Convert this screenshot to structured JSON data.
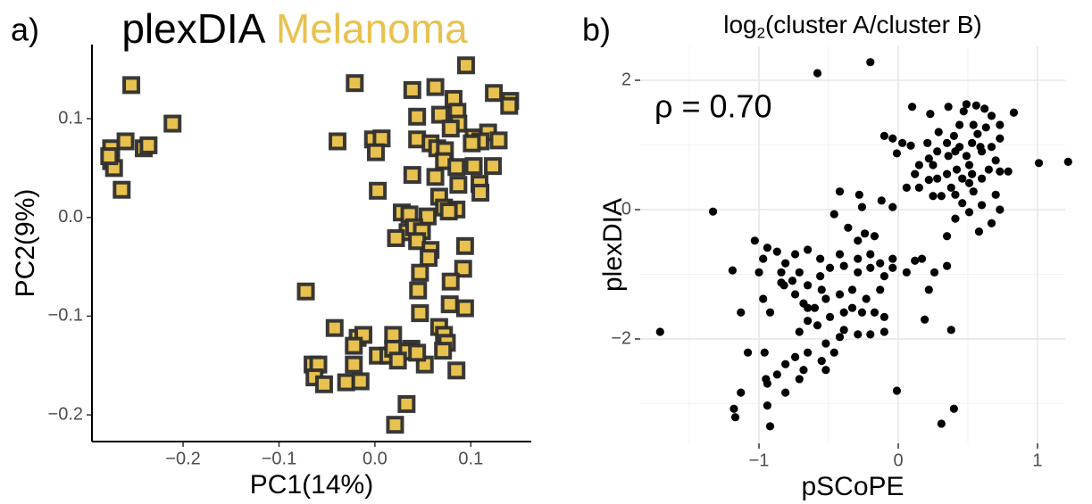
{
  "chart_data": [
    {
      "type": "scatter",
      "panel_label": "a)",
      "marker": "square",
      "color": "#e8c14f",
      "edgecolor": "#2e2e2e",
      "title_parts": [
        {
          "text": "plexDIA",
          "color": "#000000"
        },
        {
          "text": "Melanoma",
          "color": "#e8c14f"
        }
      ],
      "xlabel": "PC1(14%)",
      "ylabel": "PC2(9%)",
      "grid": false,
      "xlim": [
        -0.295,
        0.163
      ],
      "ylim": [
        -0.227,
        0.175
      ],
      "xticks": [
        {
          "value": -0.2,
          "label": "−0.2"
        },
        {
          "value": -0.1,
          "label": "−0.1"
        },
        {
          "value": 0,
          "label": "0.0"
        },
        0.1
      ],
      "yticks": [
        {
          "value": -0.2,
          "label": "−0.2"
        },
        {
          "value": -0.1,
          "label": "−0.1"
        },
        {
          "value": 0,
          "label": "0.0"
        },
        0.1
      ],
      "x": [
        -0.275,
        -0.275,
        -0.272,
        -0.26,
        -0.254,
        -0.264,
        -0.241,
        -0.236,
        -0.211,
        -0.277,
        0.095,
        -0.021,
        0.039,
        0.063,
        0.124,
        0.141,
        0.14,
        0.082,
        0.044,
        0.068,
        0.086,
        0.087,
        0.079,
        0.103,
        0.118,
        0.129,
        0.11,
        0.101,
        0.044,
        0.058,
        0.065,
        0.073,
        -0.039,
        -0.002,
        0.007,
        0.001,
        0.039,
        0.072,
        0.085,
        0.103,
        0.123,
        0.063,
        0.087,
        0.109,
        0.11,
        0.003,
        0.067,
        0.072,
        0.085,
        0.028,
        0.036,
        0.055,
        0.077,
        0.034,
        0.041,
        0.049,
        0.022,
        0.044,
        0.058,
        0.094,
        0.056,
        0.047,
        0.092,
        0.045,
        0.079,
        0.047,
        0.078,
        0.094,
        0.067,
        0.072,
        0.075,
        0.071,
        -0.072,
        -0.042,
        -0.018,
        -0.012,
        0.019,
        -0.022,
        0.003,
        0.014,
        0.019,
        0.038,
        0.034,
        0.024,
        0.052,
        -0.065,
        -0.059,
        -0.063,
        -0.053,
        -0.03,
        -0.022,
        -0.015,
        0.044,
        0.085,
        0.033,
        0.021
      ],
      "values": [
        0.057,
        0.07,
        0.05,
        0.077,
        0.134,
        0.028,
        0.07,
        0.073,
        0.095,
        0.062,
        0.154,
        0.136,
        0.129,
        0.132,
        0.126,
        0.118,
        0.113,
        0.12,
        0.102,
        0.104,
        0.107,
        0.095,
        0.09,
        0.081,
        0.086,
        0.078,
        0.077,
        0.075,
        0.079,
        0.075,
        0.07,
        0.068,
        0.077,
        0.079,
        0.08,
        0.066,
        0.043,
        0.057,
        0.051,
        0.052,
        0.052,
        0.041,
        0.033,
        0.034,
        0.025,
        0.027,
        0.021,
        0.01,
        0.008,
        0.005,
        0.003,
        0.001,
        0.006,
        -0.015,
        -0.01,
        -0.014,
        -0.021,
        -0.024,
        -0.033,
        -0.029,
        -0.041,
        -0.056,
        -0.052,
        -0.074,
        -0.065,
        -0.097,
        -0.088,
        -0.092,
        -0.111,
        -0.119,
        -0.127,
        -0.135,
        -0.075,
        -0.112,
        -0.122,
        -0.119,
        -0.119,
        -0.13,
        -0.14,
        -0.14,
        -0.133,
        -0.133,
        -0.136,
        -0.145,
        -0.149,
        -0.149,
        -0.149,
        -0.162,
        -0.169,
        -0.167,
        -0.149,
        -0.166,
        -0.137,
        -0.155,
        -0.189,
        -0.21
      ]
    },
    {
      "type": "scatter",
      "panel_label": "b)",
      "marker": "circle",
      "color": "#000000",
      "title_parts": [
        {
          "text": "log"
        },
        {
          "text": "2",
          "subscript": true
        },
        {
          "text": "(cluster A/cluster B)"
        }
      ],
      "annotation": "ρ = 0.70",
      "xlabel": "pSCoPE",
      "ylabel": "plexDIA",
      "grid": true,
      "minor_grid": true,
      "xlim": [
        -1.853,
        1.199
      ],
      "ylim": [
        -3.614,
        2.524
      ],
      "xticks": [
        {
          "value": -1,
          "label": "−1"
        },
        0,
        1
      ],
      "yticks": [
        {
          "value": -2,
          "label": "−2"
        },
        0,
        2
      ],
      "x": [
        -0.58,
        -0.2,
        -1.71,
        -1.33,
        1.01,
        1.22,
        0.73,
        -1.19,
        -0.84,
        -1.17,
        -1.18,
        -0.92,
        0.31,
        0.4,
        -0.01,
        0.19,
        0.38,
        -0.95,
        -1.13,
        -1.08,
        0.1,
        0.23,
        0.29,
        0.36,
        0.47,
        0.49,
        0.56,
        0.62,
        0.67,
        0.73,
        0.83,
        0.63,
        0.57,
        0.53,
        0.44,
        0.41,
        0.49,
        0.6,
        0.67,
        0.54,
        0.44,
        0.4,
        0.35,
        0.28,
        0.22,
        0.15,
        0.12,
        0.06,
        0.15,
        0.25,
        0.31,
        0.41,
        0.51,
        0.54,
        0.6,
        0.65,
        0.7,
        0.73,
        0.59,
        0.51,
        0.42,
        0.35,
        0.25,
        0.28,
        0.21,
        0.09,
        0.03,
        -0.04,
        -0.1,
        -0.01,
        0.36,
        0.46,
        0.41,
        0.35,
        0.51,
        0.6,
        0.7,
        0.53,
        0.46,
        0.38,
        0.22,
        0.73,
        0.79,
        0.67,
        0.58,
        0.35,
        0.26,
        0.22,
        0.12,
        -0.04,
        0.06,
        0.17,
        -0.42,
        -0.28,
        -0.12,
        -0.46,
        -0.36,
        -0.24,
        -0.29,
        -0.42,
        -0.56,
        -0.65,
        -0.74,
        -0.81,
        -0.87,
        -0.94,
        -1.03,
        -0.97,
        -0.82,
        -0.71,
        -0.65,
        -0.56,
        -0.49,
        -0.39,
        -0.29,
        -0.2,
        -0.1,
        -0.13,
        -0.23,
        -0.33,
        -0.42,
        -0.52,
        -0.6,
        -0.68,
        -0.74,
        -0.76,
        -0.84,
        -0.58,
        -0.49,
        -0.39,
        -0.33,
        -0.26,
        -0.17,
        -0.1,
        -0.39,
        -0.29,
        -0.2,
        -0.1,
        -0.65,
        -0.71,
        -0.52,
        -0.42,
        -0.65,
        -0.74,
        -0.81,
        -0.68,
        -0.87,
        -0.94,
        -0.81,
        -0.71,
        -0.55,
        -0.46,
        -0.52,
        -1,
        -0.97,
        -0.92,
        -0.96,
        -0.94,
        -1.13,
        -0.65,
        -0.55,
        -0.29,
        -0.2,
        -0.17,
        -0.04,
        -0.13,
        -0.26,
        -0.04
      ],
      "values": [
        2.11,
        2.28,
        -1.89,
        -0.03,
        0.72,
        0.74,
        0,
        -0.94,
        -1.13,
        -3.21,
        -3.08,
        -3.35,
        -3.31,
        -3.08,
        -2.8,
        -1.7,
        -1.86,
        -2.62,
        -1.59,
        -2.21,
        1.59,
        1.48,
        1.2,
        1.59,
        1.52,
        1.63,
        1.61,
        1.56,
        1.45,
        1.31,
        1.5,
        1.27,
        1.17,
        1.03,
        0.97,
        0.9,
        0.83,
        0.9,
        0.97,
        1.31,
        1.31,
        1.14,
        1.03,
        0.9,
        0.79,
        0.69,
        0.55,
        0.34,
        0.34,
        0.21,
        0.21,
        0.23,
        0.41,
        0.28,
        0.48,
        0.62,
        0.76,
        1.1,
        0.97,
        0.69,
        0.62,
        0.55,
        0.69,
        0.48,
        1.03,
        0.99,
        1.03,
        1.1,
        1.14,
        0.87,
        0.83,
        0.1,
        -0.14,
        -0.41,
        -0.04,
        0.07,
        0.23,
        0.55,
        0.48,
        0.34,
        0.46,
        0.59,
        0.59,
        -0.21,
        -0.34,
        -0.87,
        -0.97,
        -1.24,
        -0.79,
        -0.9,
        -0.97,
        -0.76,
        0.28,
        0.23,
        0.14,
        -0.07,
        -0.28,
        -0.37,
        -0.48,
        -0.69,
        -0.76,
        -0.62,
        -0.69,
        -0.83,
        -0.65,
        -0.59,
        -0.48,
        -0.76,
        -1.17,
        -0.97,
        -1.17,
        -1.03,
        -0.9,
        -0.87,
        -0.97,
        -0.9,
        -1.03,
        -1.24,
        -1.38,
        -1.24,
        -1.31,
        -1.38,
        -1.52,
        -1.45,
        -1.31,
        -1.1,
        -0.97,
        -1.79,
        -1.66,
        -1.59,
        -1.52,
        -1.59,
        -1.59,
        -1.66,
        -1.86,
        -1.93,
        -1.93,
        -1.89,
        -1.72,
        -1.89,
        -2.07,
        -1.97,
        -2.21,
        -2.28,
        -2.39,
        -2.48,
        -2.55,
        -2.69,
        -2.83,
        -2.62,
        -2.34,
        -2.21,
        -2.48,
        -0.97,
        -1.38,
        -1.59,
        -2.21,
        -3.03,
        -2.83,
        -1.52,
        -1.24,
        -0.76,
        -0.69,
        -0.41,
        -0.76,
        -0.83,
        0.04,
        0.04
      ]
    }
  ]
}
